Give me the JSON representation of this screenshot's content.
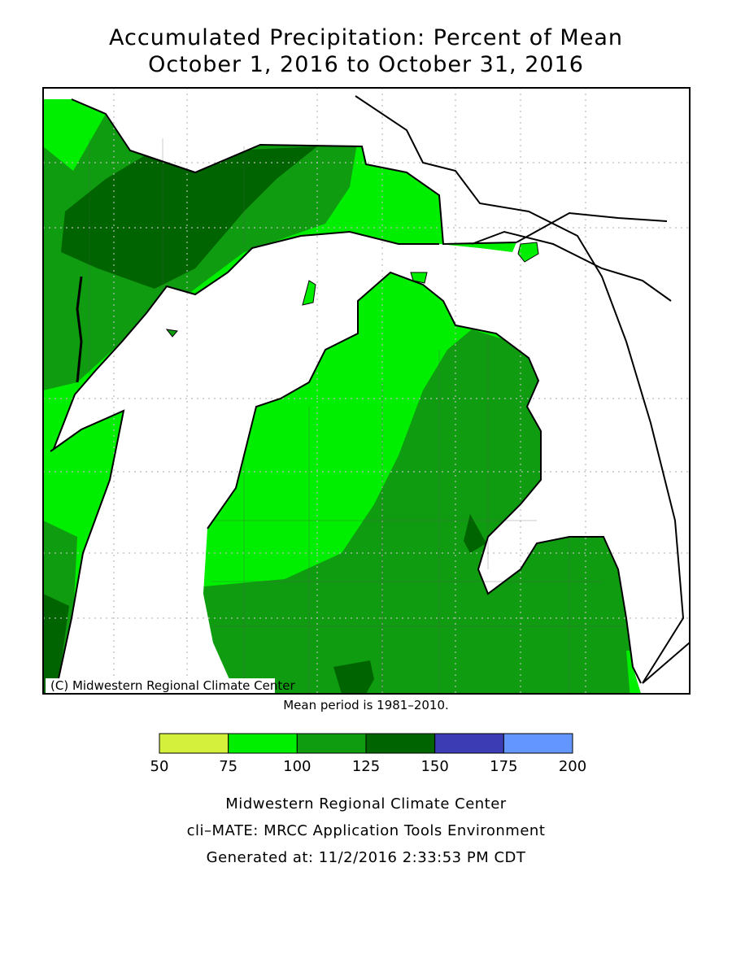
{
  "title": [
    "Accumulated Precipitation: Percent of Mean",
    "October 1, 2016 to October 31, 2016"
  ],
  "map": {
    "credit": "(C) Midwestern Regional Climate Center",
    "note": "Mean period is 1981–2010."
  },
  "legend": {
    "bins": [
      50,
      75,
      100,
      125,
      150,
      175,
      200
    ],
    "colors": [
      "#d4f03c",
      "#00ee00",
      "#109c10",
      "#006400",
      "#3c3cb4",
      "#6496ff"
    ]
  },
  "footer": [
    "Midwestern Regional Climate Center",
    "cli–MATE: MRCC Application Tools Environment",
    "Generated at: 11/2/2016 2:33:53 PM CDT"
  ]
}
